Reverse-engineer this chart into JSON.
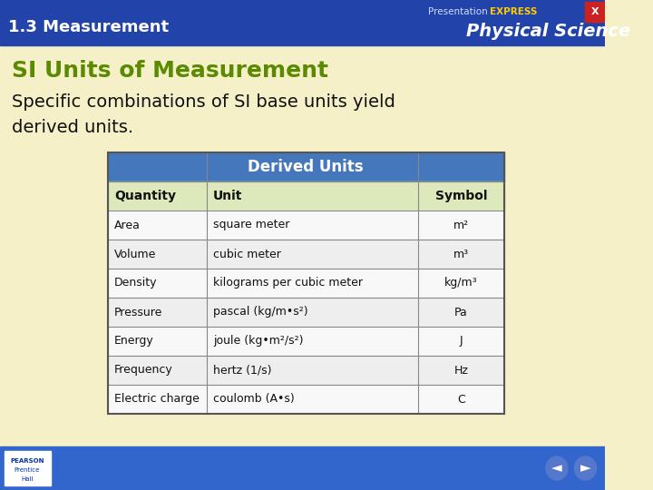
{
  "slide_title": "1.3 Measurement",
  "header_title": "Physical Science",
  "header_sub": "PresentationEXPRESS",
  "section_title": "SI Units of Measurement",
  "body_text_line1": "Specific combinations of SI base units yield",
  "body_text_line2": "derived units.",
  "table_header": "Derived Units",
  "col_headers": [
    "Quantity",
    "Unit",
    "Symbol"
  ],
  "rows": [
    [
      "Area",
      "square meter",
      "m²"
    ],
    [
      "Volume",
      "cubic meter",
      "m³"
    ],
    [
      "Density",
      "kilograms per cubic meter",
      "kg/m³"
    ],
    [
      "Pressure",
      "pascal (kg/m•s²)",
      "Pa"
    ],
    [
      "Energy",
      "joule (kg•m²/s²)",
      "J"
    ],
    [
      "Frequency",
      "hertz (1/s)",
      "Hz"
    ],
    [
      "Electric charge",
      "coulomb (A•s)",
      "C"
    ]
  ],
  "bg_color": "#f5f0c8",
  "header_bg": "#2244aa",
  "header_text_color": "#ffffff",
  "table_header_bg": "#4477bb",
  "table_col_header_bg": "#dde8bb",
  "table_row_bg1": "#f8f8f8",
  "table_row_bg2": "#eeeeee",
  "table_border": "#888888",
  "title_color": "#5a8a00",
  "slide_title_color": "#ffffff",
  "body_text_color": "#111111",
  "footer_bg": "#3366cc",
  "top_bar_color": "#2244aa"
}
